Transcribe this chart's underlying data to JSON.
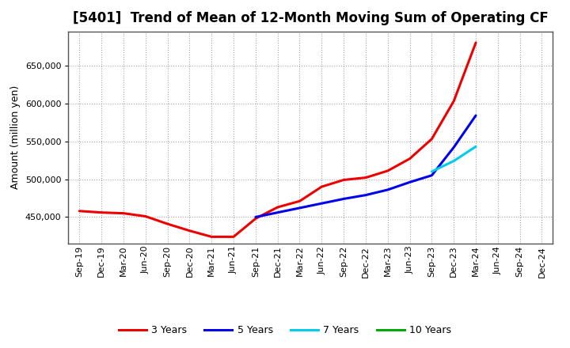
{
  "title": "[5401]  Trend of Mean of 12-Month Moving Sum of Operating CF",
  "ylabel": "Amount (million yen)",
  "background_color": "#ffffff",
  "plot_bg_color": "#ffffff",
  "grid_color": "#999999",
  "ylim": [
    415000,
    695000
  ],
  "yticks": [
    450000,
    500000,
    550000,
    600000,
    650000
  ],
  "x_labels": [
    "Sep-19",
    "Dec-19",
    "Mar-20",
    "Jun-20",
    "Sep-20",
    "Dec-20",
    "Mar-21",
    "Jun-21",
    "Sep-21",
    "Dec-21",
    "Mar-22",
    "Jun-22",
    "Sep-22",
    "Dec-22",
    "Mar-23",
    "Jun-23",
    "Sep-23",
    "Dec-23",
    "Mar-24",
    "Jun-24",
    "Sep-24",
    "Dec-24"
  ],
  "series": {
    "3 Years": {
      "color": "#ee0000",
      "data": {
        "Sep-19": 458000,
        "Dec-19": 456000,
        "Mar-20": 455000,
        "Jun-20": 451000,
        "Sep-20": 441000,
        "Dec-20": 432000,
        "Mar-21": 424000,
        "Jun-21": 424000,
        "Sep-21": 448000,
        "Dec-21": 463000,
        "Mar-22": 471000,
        "Jun-22": 490000,
        "Sep-22": 499000,
        "Dec-22": 502000,
        "Mar-23": 511000,
        "Jun-23": 527000,
        "Sep-23": 553000,
        "Dec-23": 603000,
        "Mar-24": 680000
      }
    },
    "5 Years": {
      "color": "#0000ee",
      "data": {
        "Sep-21": 450000,
        "Dec-21": 456000,
        "Mar-22": 462000,
        "Jun-22": 468000,
        "Sep-22": 474000,
        "Dec-22": 479000,
        "Mar-23": 486000,
        "Jun-23": 496000,
        "Sep-23": 505000,
        "Dec-23": 542000,
        "Mar-24": 584000
      }
    },
    "7 Years": {
      "color": "#00ccee",
      "data": {
        "Sep-23": 510000,
        "Dec-23": 524000,
        "Mar-24": 543000
      }
    },
    "10 Years": {
      "color": "#00aa00",
      "data": {}
    }
  },
  "legend_labels": [
    "3 Years",
    "5 Years",
    "7 Years",
    "10 Years"
  ],
  "title_fontsize": 12,
  "ylabel_fontsize": 9,
  "tick_fontsize": 8,
  "linewidth": 2.2
}
